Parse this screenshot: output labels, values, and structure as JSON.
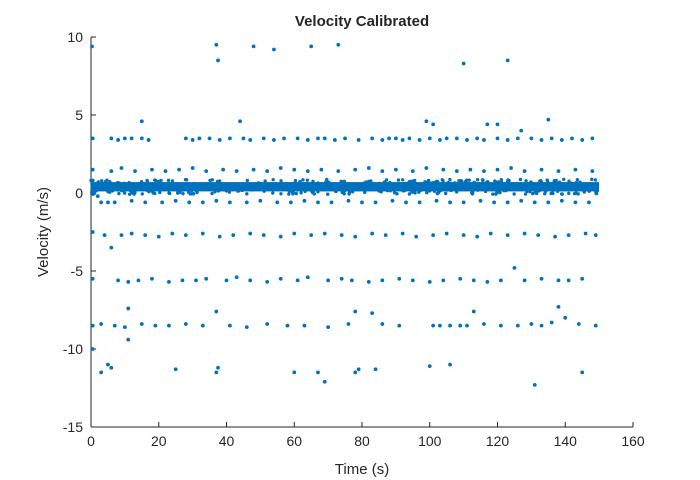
{
  "chart_data": {
    "type": "scatter",
    "title": "Velocity Calibrated",
    "xlabel": "Time (s)",
    "ylabel": "Velocity (m/s)",
    "xlim": [
      0,
      160
    ],
    "ylim": [
      -15,
      10
    ],
    "xticks": [
      0,
      20,
      40,
      60,
      80,
      100,
      120,
      140,
      160
    ],
    "yticks": [
      -15,
      -10,
      -5,
      0,
      5,
      10
    ],
    "grid": false,
    "marker_color": "#0072BD",
    "dense_band": {
      "x_range": [
        0,
        150
      ],
      "y_center": 0.4,
      "y_spread": 0.3,
      "note": "continuous dense band of points"
    },
    "series": [
      {
        "values": [
          [
            0.3,
            9.4
          ],
          [
            37,
            9.5
          ],
          [
            37.5,
            8.5
          ],
          [
            48,
            9.4
          ],
          [
            54,
            9.2
          ],
          [
            65,
            9.4
          ],
          [
            73,
            9.5
          ],
          [
            110,
            8.3
          ],
          [
            123,
            8.5
          ],
          [
            44,
            4.6
          ],
          [
            99,
            4.6
          ],
          [
            101,
            4.4
          ],
          [
            117,
            4.4
          ],
          [
            120,
            4.4
          ],
          [
            127,
            4.0
          ],
          [
            135,
            4.7
          ],
          [
            15,
            4.6
          ],
          [
            0.5,
            3.5
          ],
          [
            6,
            3.5
          ],
          [
            8,
            3.4
          ],
          [
            10,
            3.5
          ],
          [
            12,
            3.5
          ],
          [
            15,
            3.5
          ],
          [
            17,
            3.4
          ],
          [
            28,
            3.5
          ],
          [
            30,
            3.4
          ],
          [
            32,
            3.5
          ],
          [
            35,
            3.5
          ],
          [
            38,
            3.4
          ],
          [
            41,
            3.5
          ],
          [
            45,
            3.5
          ],
          [
            47,
            3.4
          ],
          [
            51,
            3.5
          ],
          [
            54,
            3.4
          ],
          [
            57,
            3.5
          ],
          [
            61,
            3.5
          ],
          [
            64,
            3.4
          ],
          [
            67,
            3.5
          ],
          [
            69,
            3.5
          ],
          [
            72,
            3.4
          ],
          [
            75,
            3.5
          ],
          [
            79,
            3.4
          ],
          [
            83,
            3.5
          ],
          [
            86,
            3.4
          ],
          [
            88,
            3.5
          ],
          [
            90,
            3.5
          ],
          [
            92,
            3.4
          ],
          [
            94,
            3.5
          ],
          [
            97,
            3.4
          ],
          [
            100,
            3.5
          ],
          [
            103,
            3.4
          ],
          [
            105,
            3.5
          ],
          [
            108,
            3.5
          ],
          [
            111,
            3.4
          ],
          [
            114,
            3.5
          ],
          [
            116,
            3.4
          ],
          [
            120,
            3.5
          ],
          [
            123,
            3.4
          ],
          [
            126,
            3.5
          ],
          [
            130,
            3.5
          ],
          [
            133,
            3.4
          ],
          [
            136,
            3.5
          ],
          [
            139,
            3.4
          ],
          [
            142,
            3.5
          ],
          [
            145,
            3.4
          ],
          [
            148,
            3.5
          ],
          [
            0.5,
            1.5
          ],
          [
            6,
            1.4
          ],
          [
            9,
            1.6
          ],
          [
            13,
            1.4
          ],
          [
            18,
            1.5
          ],
          [
            22,
            1.4
          ],
          [
            26,
            1.5
          ],
          [
            30,
            1.6
          ],
          [
            34,
            1.4
          ],
          [
            39,
            1.5
          ],
          [
            43,
            1.4
          ],
          [
            48,
            1.5
          ],
          [
            52,
            1.4
          ],
          [
            56,
            1.6
          ],
          [
            60,
            1.5
          ],
          [
            64,
            1.4
          ],
          [
            68,
            1.5
          ],
          [
            73,
            1.4
          ],
          [
            78,
            1.5
          ],
          [
            82,
            1.6
          ],
          [
            86,
            1.4
          ],
          [
            90,
            1.5
          ],
          [
            95,
            1.4
          ],
          [
            99,
            1.6
          ],
          [
            104,
            1.5
          ],
          [
            108,
            1.4
          ],
          [
            112,
            1.5
          ],
          [
            116,
            1.4
          ],
          [
            120,
            1.5
          ],
          [
            124,
            1.6
          ],
          [
            128,
            1.4
          ],
          [
            133,
            1.5
          ],
          [
            138,
            1.4
          ],
          [
            143,
            1.5
          ],
          [
            148,
            1.4
          ],
          [
            0.5,
            0.8
          ],
          [
            2,
            -0.2
          ],
          [
            3,
            -0.6
          ],
          [
            5,
            -0.6
          ],
          [
            7,
            -0.6
          ],
          [
            12,
            -0.5
          ],
          [
            16,
            -0.6
          ],
          [
            21,
            -0.6
          ],
          [
            25,
            -0.5
          ],
          [
            29,
            -0.6
          ],
          [
            33,
            -0.6
          ],
          [
            37,
            -0.5
          ],
          [
            41,
            -0.6
          ],
          [
            46,
            -0.6
          ],
          [
            50,
            -0.5
          ],
          [
            55,
            -0.6
          ],
          [
            59,
            -0.6
          ],
          [
            63,
            -0.5
          ],
          [
            67,
            -0.6
          ],
          [
            71,
            -0.6
          ],
          [
            76,
            -0.5
          ],
          [
            80,
            -0.6
          ],
          [
            84,
            -0.6
          ],
          [
            89,
            -0.5
          ],
          [
            93,
            -0.6
          ],
          [
            97,
            -0.6
          ],
          [
            102,
            -0.5
          ],
          [
            106,
            -0.6
          ],
          [
            110,
            -0.6
          ],
          [
            115,
            -0.5
          ],
          [
            119,
            -0.6
          ],
          [
            123,
            -0.6
          ],
          [
            127,
            -0.5
          ],
          [
            131,
            -0.6
          ],
          [
            135,
            -0.6
          ],
          [
            139,
            -0.5
          ],
          [
            143,
            -0.6
          ],
          [
            147,
            -0.6
          ],
          [
            0.5,
            -2.5
          ],
          [
            4,
            -2.7
          ],
          [
            6,
            -3.5
          ],
          [
            9,
            -2.7
          ],
          [
            12,
            -2.6
          ],
          [
            16,
            -2.7
          ],
          [
            20,
            -2.8
          ],
          [
            24,
            -2.6
          ],
          [
            28,
            -2.7
          ],
          [
            33,
            -2.6
          ],
          [
            38,
            -2.8
          ],
          [
            42,
            -2.7
          ],
          [
            47,
            -2.6
          ],
          [
            51,
            -2.7
          ],
          [
            56,
            -2.8
          ],
          [
            60,
            -2.6
          ],
          [
            65,
            -2.7
          ],
          [
            69,
            -2.6
          ],
          [
            74,
            -2.7
          ],
          [
            78,
            -2.8
          ],
          [
            83,
            -2.6
          ],
          [
            87,
            -2.7
          ],
          [
            92,
            -2.6
          ],
          [
            96,
            -2.8
          ],
          [
            101,
            -2.7
          ],
          [
            105,
            -2.6
          ],
          [
            110,
            -2.7
          ],
          [
            114,
            -2.8
          ],
          [
            118,
            -2.6
          ],
          [
            123,
            -2.7
          ],
          [
            128,
            -2.6
          ],
          [
            132,
            -2.7
          ],
          [
            137,
            -2.8
          ],
          [
            141,
            -2.7
          ],
          [
            146,
            -2.6
          ],
          [
            149,
            -2.7
          ],
          [
            0.5,
            -5.5
          ],
          [
            8,
            -5.6
          ],
          [
            11,
            -5.7
          ],
          [
            14,
            -5.6
          ],
          [
            18,
            -5.5
          ],
          [
            23,
            -5.7
          ],
          [
            27,
            -5.6
          ],
          [
            31,
            -5.6
          ],
          [
            34,
            -5.5
          ],
          [
            40,
            -5.6
          ],
          [
            43,
            -5.4
          ],
          [
            47,
            -5.6
          ],
          [
            52,
            -5.7
          ],
          [
            56,
            -5.5
          ],
          [
            61,
            -5.6
          ],
          [
            64,
            -5.4
          ],
          [
            70,
            -5.6
          ],
          [
            74,
            -5.5
          ],
          [
            77,
            -5.6
          ],
          [
            82,
            -5.7
          ],
          [
            86,
            -5.6
          ],
          [
            91,
            -5.5
          ],
          [
            95,
            -5.6
          ],
          [
            100,
            -5.7
          ],
          [
            104,
            -5.6
          ],
          [
            109,
            -5.5
          ],
          [
            113,
            -5.6
          ],
          [
            117,
            -5.7
          ],
          [
            121,
            -5.6
          ],
          [
            125,
            -4.8
          ],
          [
            128,
            -5.6
          ],
          [
            133,
            -5.5
          ],
          [
            138,
            -5.6
          ],
          [
            141,
            -5.6
          ],
          [
            145,
            -5.5
          ],
          [
            0.5,
            -8.5
          ],
          [
            3,
            -8.4
          ],
          [
            7,
            -8.5
          ],
          [
            10,
            -8.6
          ],
          [
            11,
            -7.4
          ],
          [
            15,
            -8.4
          ],
          [
            19,
            -8.5
          ],
          [
            23,
            -8.5
          ],
          [
            28,
            -8.4
          ],
          [
            33,
            -8.5
          ],
          [
            37,
            -7.6
          ],
          [
            41,
            -8.5
          ],
          [
            46,
            -8.6
          ],
          [
            52,
            -8.4
          ],
          [
            58,
            -8.5
          ],
          [
            63,
            -8.5
          ],
          [
            70,
            -8.6
          ],
          [
            76,
            -8.4
          ],
          [
            78,
            -7.6
          ],
          [
            83,
            -7.7
          ],
          [
            86,
            -8.4
          ],
          [
            91,
            -8.5
          ],
          [
            101,
            -8.5
          ],
          [
            103,
            -8.5
          ],
          [
            106,
            -8.5
          ],
          [
            109,
            -8.5
          ],
          [
            111,
            -8.5
          ],
          [
            113,
            -7.6
          ],
          [
            116,
            -8.4
          ],
          [
            121,
            -8.5
          ],
          [
            126,
            -8.5
          ],
          [
            130,
            -8.4
          ],
          [
            133,
            -8.5
          ],
          [
            136,
            -8.3
          ],
          [
            138,
            -7.3
          ],
          [
            140,
            -8.0
          ],
          [
            144,
            -8.4
          ],
          [
            149,
            -8.5
          ],
          [
            0.5,
            -10.0
          ],
          [
            3,
            -11.5
          ],
          [
            5,
            -11.0
          ],
          [
            6,
            -11.2
          ],
          [
            11,
            -9.4
          ],
          [
            25,
            -11.3
          ],
          [
            37,
            -11.5
          ],
          [
            37.5,
            -11.2
          ],
          [
            60,
            -11.5
          ],
          [
            67,
            -11.5
          ],
          [
            69,
            -12.1
          ],
          [
            78,
            -11.5
          ],
          [
            79,
            -11.3
          ],
          [
            84,
            -11.3
          ],
          [
            100,
            -11.1
          ],
          [
            106,
            -11.0
          ],
          [
            131,
            -12.3
          ],
          [
            145,
            -11.5
          ]
        ]
      }
    ]
  }
}
